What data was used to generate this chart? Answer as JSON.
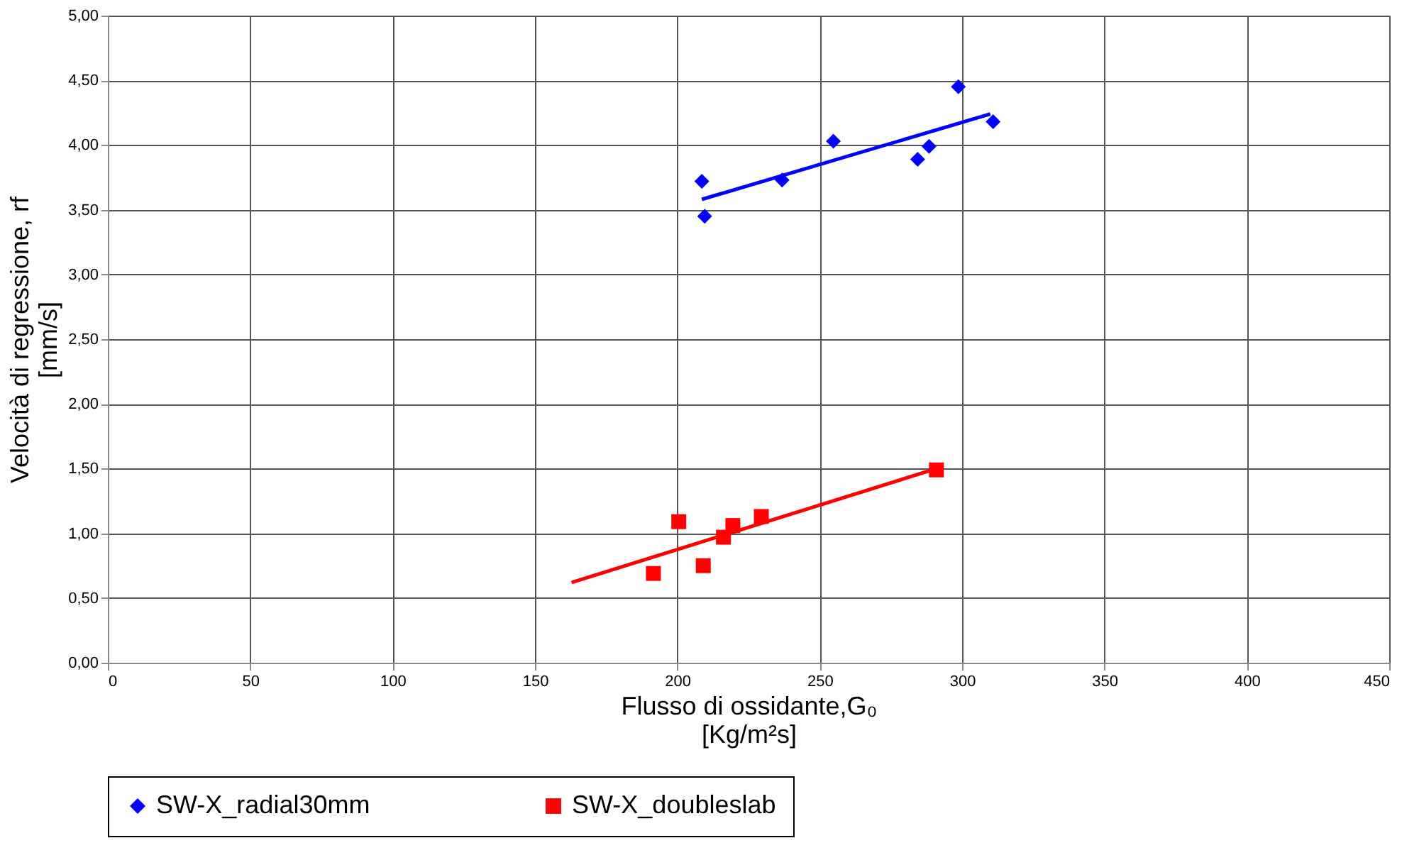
{
  "chart_data": {
    "type": "scatter",
    "xlabel": "Flusso di ossidante,G₀\n[Kg/m²s]",
    "ylabel": "Velocità di regressione, rf\n[mm/s]",
    "xlim": [
      0,
      450
    ],
    "xticks": [
      0,
      50,
      100,
      150,
      200,
      250,
      300,
      350,
      400,
      450
    ],
    "ylim": [
      0,
      5
    ],
    "yticks": [
      {
        "value": 0,
        "label": "0,00"
      },
      {
        "value": 0.5,
        "label": "0,50"
      },
      {
        "value": 1,
        "label": "1,00"
      },
      {
        "value": 1.5,
        "label": "1,50"
      },
      {
        "value": 2,
        "label": "2,00"
      },
      {
        "value": 2.5,
        "label": "2,50"
      },
      {
        "value": 3,
        "label": "3,00"
      },
      {
        "value": 3.5,
        "label": "3,50"
      },
      {
        "value": 4,
        "label": "4,00"
      },
      {
        "value": 4.5,
        "label": "4,50"
      },
      {
        "value": 5,
        "label": "5,00"
      }
    ],
    "grid": true,
    "legend": "bottom",
    "series": [
      {
        "name": "SW-X_radial30mm",
        "color": "#0000ff",
        "marker": "diamond",
        "x": [
          208.6,
          209.6,
          236.8,
          254.8,
          284.4,
          288.4,
          298.7,
          310.9
        ],
        "values": [
          3.72,
          3.45,
          3.73,
          4.03,
          3.89,
          3.99,
          4.45,
          4.18
        ]
      },
      {
        "name": "SW-X_doubleslab",
        "color": "#ff0000",
        "marker": "square",
        "x": [
          191.6,
          200.5,
          209.1,
          216.2,
          219.5,
          229.5,
          291.0
        ],
        "values": [
          0.69,
          1.09,
          0.75,
          0.97,
          1.06,
          1.13,
          1.49
        ]
      },
      {
        "type": "line",
        "color": "#0000ff",
        "x": [
          208.6,
          309.9
        ],
        "values": [
          3.58,
          4.24
        ]
      },
      {
        "type": "line",
        "color": "#ff0000",
        "x": [
          162.9,
          291.0
        ],
        "values": [
          0.62,
          1.5
        ]
      }
    ]
  }
}
